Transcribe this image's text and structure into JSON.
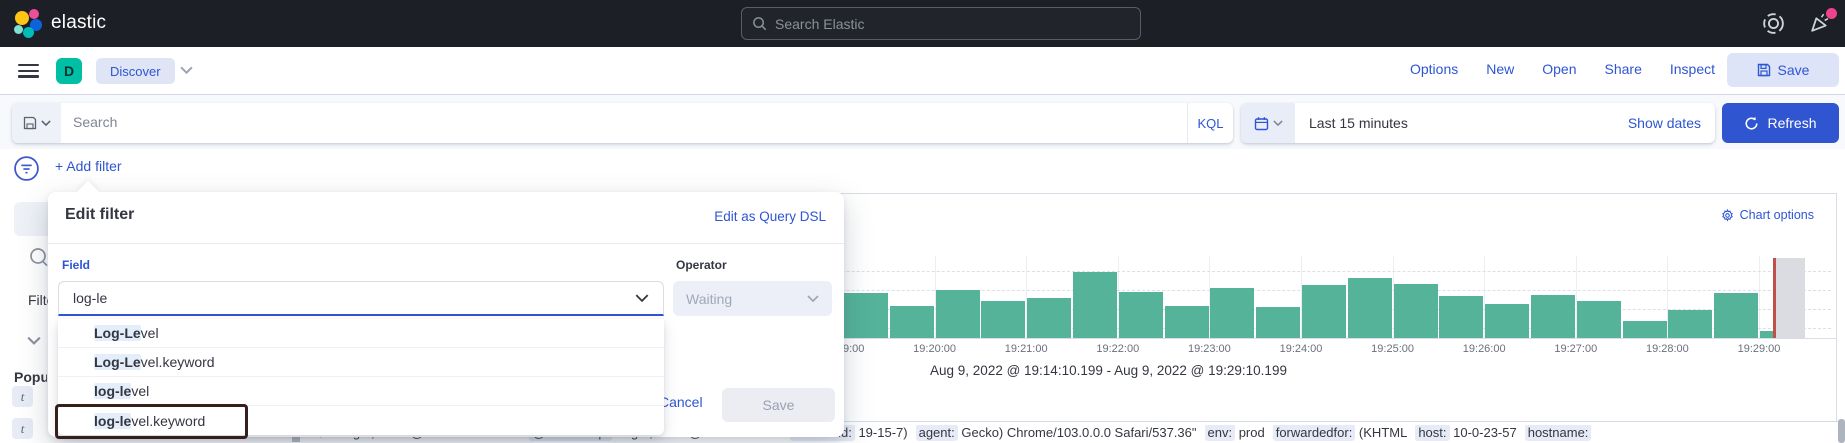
{
  "header": {
    "brand": "elastic",
    "search_placeholder": "Search Elastic",
    "news_badge_color": "#f0428c",
    "colors": {
      "bar_bg": "#1d1f26",
      "icon_gray": "#ced2da"
    }
  },
  "nav": {
    "space_initial": "D",
    "space_color": "#00bfa5",
    "breadcrumb": "Discover",
    "links": [
      "Options",
      "New",
      "Open",
      "Share",
      "Inspect"
    ],
    "save_label": "Save",
    "accent": "#2e55d4",
    "pill_bg": "#e0e5f5",
    "save_bg": "#dde4f8"
  },
  "query_bar": {
    "search_placeholder": "Search",
    "language": "KQL",
    "time_range": "Last 15 minutes",
    "show_dates": "Show dates",
    "refresh_label": "Refresh",
    "refresh_bg": "#2f55d1"
  },
  "filter_bar": {
    "add_filter": "+ Add filter"
  },
  "sidebar": {
    "filter_fragment": "Filter",
    "popular_fragment": "Popular",
    "type_badges": [
      "t",
      "t"
    ]
  },
  "popup": {
    "title": "Edit filter",
    "dsl_link": "Edit as Query DSL",
    "field_label": "Field",
    "field_value": "log-le",
    "operator_label": "Operator",
    "operator_value": "Waiting",
    "options": [
      {
        "match": "Log-Le",
        "rest": "vel"
      },
      {
        "match": "Log-Le",
        "rest": "vel.keyword"
      },
      {
        "match": "log-le",
        "rest": "vel"
      },
      {
        "match": "log-le",
        "rest": "vel.keyword",
        "annotated": true
      }
    ],
    "cancel_label": "Cancel",
    "save_label": "Save"
  },
  "chart": {
    "options_label": "Chart options",
    "annotation": "Aug 9, 2022 @ 19:14:10.199 - Aug 9, 2022 @ 19:29:10.199",
    "chart_data": {
      "type": "bar",
      "x": [
        "19:19:00",
        "19:19:30",
        "19:20:00",
        "19:20:30",
        "19:21:00",
        "19:21:30",
        "19:22:00",
        "19:22:30",
        "19:23:00",
        "19:23:30",
        "19:24:00",
        "19:24:30",
        "19:25:00",
        "19:25:30",
        "19:26:00",
        "19:26:30",
        "19:27:00",
        "19:27:30",
        "19:28:00",
        "19:28:30",
        "19:29:00"
      ],
      "values": [
        45,
        32,
        48,
        37,
        40,
        66,
        46,
        32,
        50,
        31,
        53,
        60,
        54,
        42,
        34,
        43,
        37,
        17,
        28,
        45,
        7
      ],
      "values_note": "relative document counts (bar heights in px); y-axis hidden behind dialog",
      "xticks": [
        "19:19:00",
        "19:20:00",
        "19:21:00",
        "19:22:00",
        "19:23:00",
        "19:24:00",
        "19:25:00",
        "19:26:00",
        "19:27:00",
        "19:28:00",
        "19:29:00"
      ],
      "bar_color": "#54b399",
      "partial_bucket": {
        "time": "19:29:10.199",
        "fill": "#dadce2",
        "marker_color": "#c0504a"
      },
      "title": "",
      "xlabel": "",
      "ylabel": "",
      "grid": "dashed-horizontal"
    }
  },
  "doc_table": {
    "timestamp": "Aug 9, 2022 @ 19:29:07.474",
    "source": [
      {
        "field": "@timestamp:",
        "value": "Aug 9, 2022 @ 19:29:07.474"
      },
      {
        "field": "accountid:",
        "value": "19-15-7)"
      },
      {
        "field": "agent:",
        "value": "Gecko) Chrome/103.0.0.0 Safari/537.36\""
      },
      {
        "field": "env:",
        "value": "prod"
      },
      {
        "field": "forwardedfor:",
        "value": "(KHTML"
      },
      {
        "field": "host:",
        "value": "10-0-23-57"
      },
      {
        "field": "hostname:",
        "value": ""
      }
    ]
  }
}
